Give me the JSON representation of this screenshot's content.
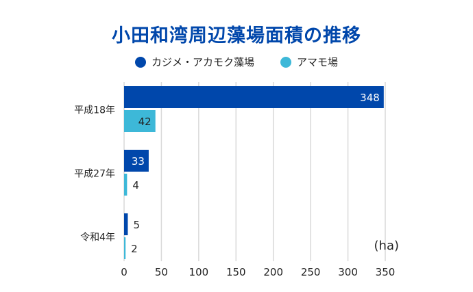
{
  "chart_data": {
    "type": "bar",
    "orientation": "horizontal",
    "title": "小田和湾周辺藻場面積の推移",
    "categories": [
      "平成18年",
      "平成27年",
      "令和4年"
    ],
    "series": [
      {
        "name": "カジメ・アカモク藻場",
        "color": "#0047AB",
        "values": [
          348,
          33,
          5
        ]
      },
      {
        "name": "アマモ場",
        "color": "#3DB8D8",
        "values": [
          42,
          4,
          2
        ]
      }
    ],
    "xlabel": "(ha)",
    "xlim": [
      0,
      350
    ],
    "xticks": [
      "0",
      "50",
      "100",
      "150",
      "200",
      "250",
      "300",
      "350"
    ],
    "grid": true,
    "legend": "top-center"
  }
}
